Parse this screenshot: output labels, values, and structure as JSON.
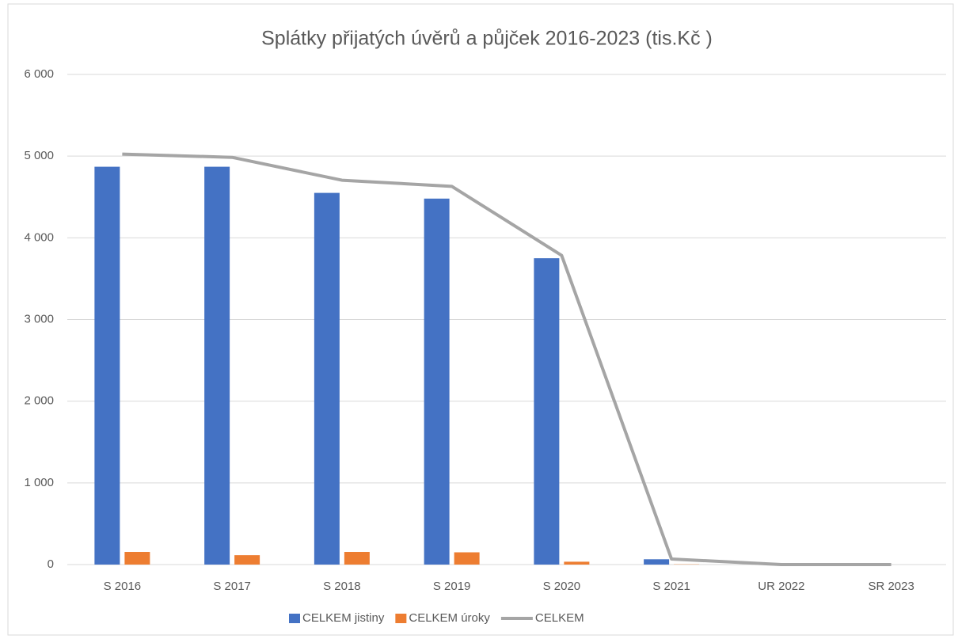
{
  "chart_data": {
    "type": "bar_line",
    "title": "Splátky přijatých úvěrů a půjček 2016-2023 (tis.Kč )",
    "categories": [
      "S 2016",
      "S 2017",
      "S 2018",
      "S 2019",
      "S 2020",
      "S 2021",
      "UR 2022",
      "SR 2023"
    ],
    "series": [
      {
        "name": "CELKEM jistiny",
        "color": "#4472c4",
        "type": "bar",
        "values": [
          4870,
          4870,
          4550,
          4480,
          3750,
          65,
          0,
          0
        ]
      },
      {
        "name": "CELKEM úroky",
        "color": "#ed7d31",
        "type": "bar",
        "values": [
          155,
          115,
          155,
          150,
          35,
          3,
          0,
          0
        ]
      },
      {
        "name": "CELKEM",
        "color": "#a5a5a5",
        "type": "line",
        "values": [
          5025,
          4985,
          4705,
          4630,
          3785,
          68,
          0,
          0
        ]
      }
    ],
    "ylim": [
      0,
      6000
    ],
    "yticks": [
      {
        "value": 0,
        "label": "0"
      },
      {
        "value": 1000,
        "label": "1 000"
      },
      {
        "value": 2000,
        "label": "2 000"
      },
      {
        "value": 3000,
        "label": "3 000"
      },
      {
        "value": 4000,
        "label": "4 000"
      },
      {
        "value": 5000,
        "label": "5 000"
      },
      {
        "value": 6000,
        "label": "6 000"
      }
    ],
    "grid": true,
    "legend": "bottom"
  }
}
